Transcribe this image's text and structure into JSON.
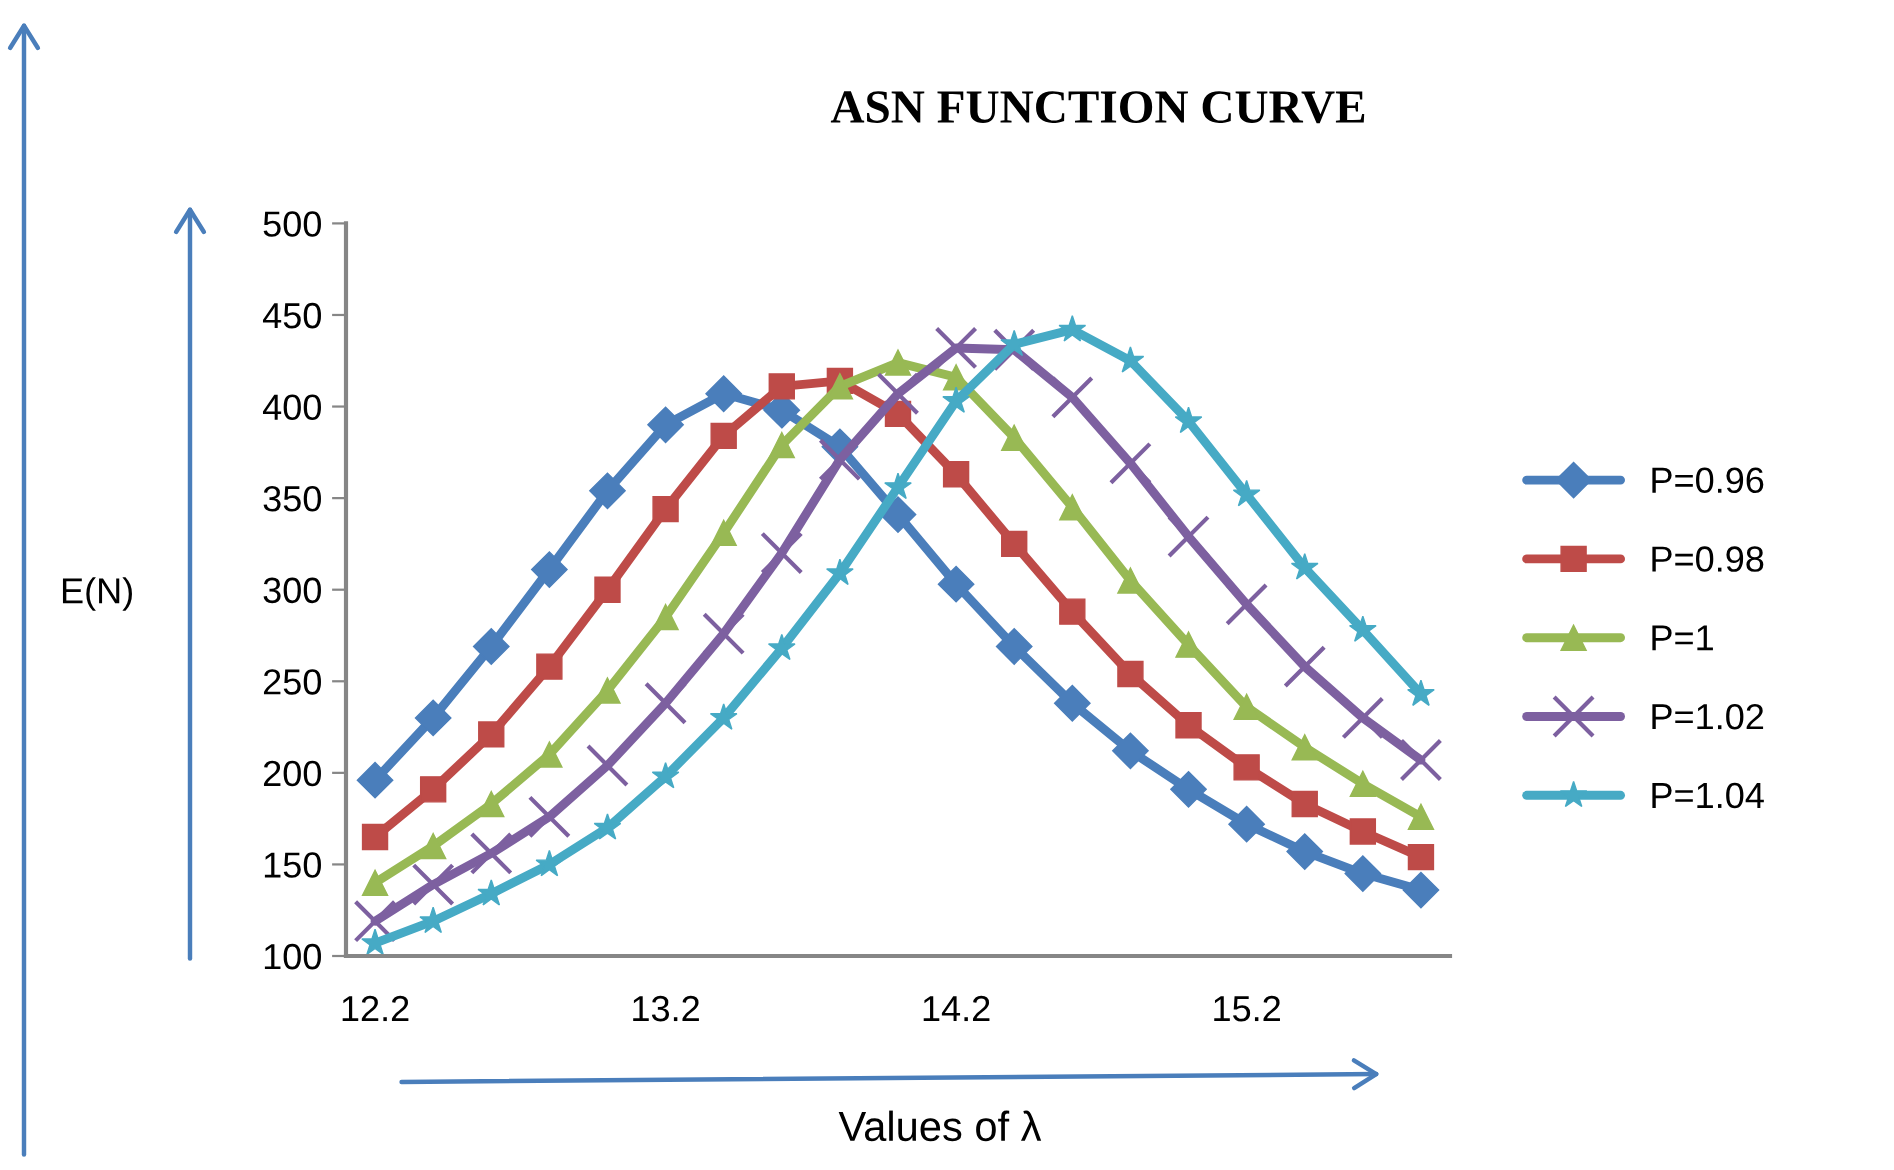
{
  "chart_data": {
    "type": "line",
    "title": "ASN FUNCTION CURVE",
    "xlabel": "Values of λ",
    "ylabel": "E(N)",
    "x": [
      12.2,
      12.4,
      12.6,
      12.8,
      13.0,
      13.2,
      13.4,
      13.6,
      13.8,
      14.0,
      14.2,
      14.4,
      14.6,
      14.8,
      15.0,
      15.2,
      15.4,
      15.6,
      15.8
    ],
    "xlim": [
      12.1,
      15.9
    ],
    "xticks": [
      12.2,
      13.2,
      14.2,
      15.2
    ],
    "ylim": [
      100,
      500
    ],
    "yticks": [
      100,
      150,
      200,
      250,
      300,
      350,
      400,
      450,
      500
    ],
    "grid": false,
    "legend": "right",
    "series": [
      {
        "name": "P=0.96",
        "color": "#4a7ebb",
        "marker": "diamond",
        "values": [
          196,
          230,
          269,
          311,
          354,
          390,
          407,
          398,
          378,
          341,
          303,
          269,
          238,
          212,
          191,
          172,
          157,
          145,
          136
        ]
      },
      {
        "name": "P=0.98",
        "color": "#be4b48",
        "marker": "square",
        "values": [
          165,
          191,
          221,
          258,
          300,
          344,
          384,
          411,
          414,
          396,
          363,
          325,
          288,
          254,
          226,
          203,
          183,
          168,
          154
        ]
      },
      {
        "name": "P=1",
        "color": "#98b954",
        "marker": "triangle",
        "values": [
          140,
          160,
          183,
          210,
          245,
          285,
          331,
          379,
          411,
          424,
          416,
          383,
          345,
          305,
          270,
          236,
          214,
          194,
          176
        ]
      },
      {
        "name": "P=1.02",
        "color": "#7d60a0",
        "marker": "cross",
        "values": [
          119,
          139,
          156,
          176,
          204,
          238,
          276,
          320,
          371,
          407,
          432,
          431,
          405,
          369,
          329,
          292,
          258,
          230,
          207
        ]
      },
      {
        "name": "P=1.04",
        "color": "#46aac5",
        "marker": "star",
        "values": [
          107,
          119,
          134,
          150,
          170,
          198,
          230,
          268,
          309,
          356,
          403,
          434,
          442,
          425,
          392,
          352,
          312,
          278,
          243
        ]
      }
    ]
  }
}
